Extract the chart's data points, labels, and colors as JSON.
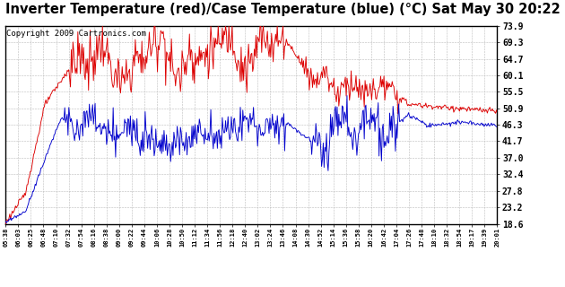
{
  "title": "Inverter Temperature (red)/Case Temperature (blue) (°C) Sat May 30 20:22",
  "copyright": "Copyright 2009 Cartronics.com",
  "ylabel_right": [
    "73.9",
    "69.3",
    "64.7",
    "60.1",
    "55.5",
    "50.9",
    "46.3",
    "41.7",
    "37.0",
    "32.4",
    "27.8",
    "23.2",
    "18.6"
  ],
  "ymin": 18.6,
  "ymax": 73.9,
  "xtick_labels": [
    "05:38",
    "06:03",
    "06:25",
    "06:48",
    "07:10",
    "07:32",
    "07:54",
    "08:16",
    "08:38",
    "09:00",
    "09:22",
    "09:44",
    "10:06",
    "10:28",
    "10:50",
    "11:12",
    "11:34",
    "11:56",
    "12:18",
    "12:40",
    "13:02",
    "13:24",
    "13:46",
    "14:08",
    "14:30",
    "14:52",
    "15:14",
    "15:36",
    "15:58",
    "16:20",
    "16:42",
    "17:04",
    "17:26",
    "17:48",
    "18:10",
    "18:32",
    "18:54",
    "19:17",
    "19:39",
    "20:01"
  ],
  "background_color": "#ffffff",
  "plot_bg_color": "#ffffff",
  "grid_color": "#bbbbbb",
  "line_color_red": "#dd0000",
  "line_color_blue": "#0000cc",
  "title_fontsize": 10.5,
  "copyright_fontsize": 6.5
}
